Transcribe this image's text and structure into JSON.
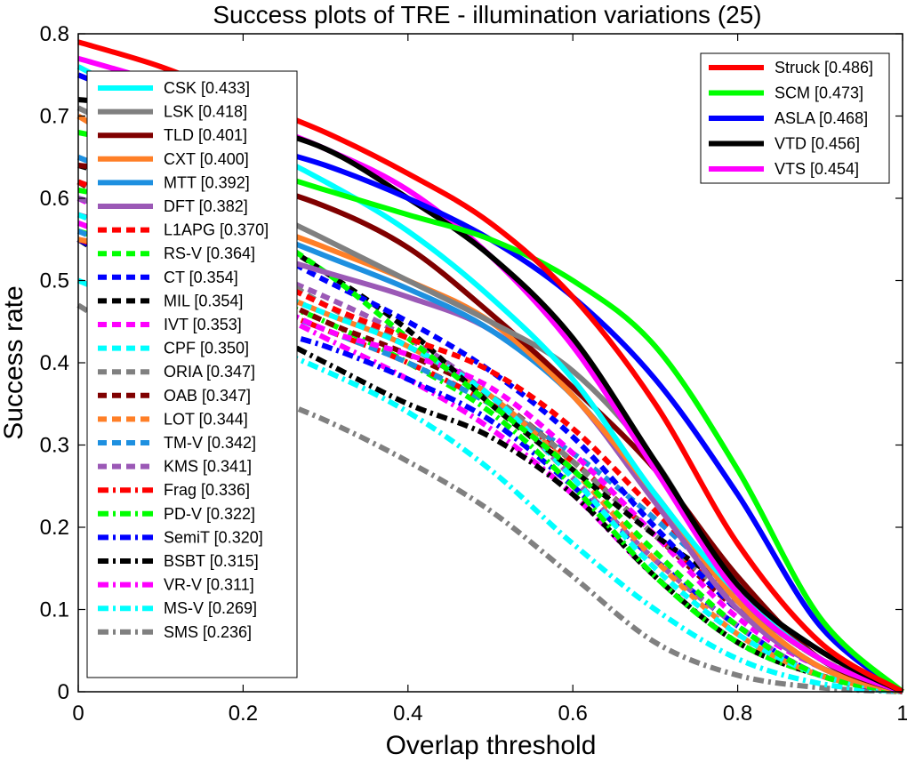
{
  "chart_data": {
    "type": "line",
    "title": "Success plots of TRE - illumination variations (25)",
    "xlabel": "Overlap threshold",
    "ylabel": "Success rate",
    "xlim": [
      0,
      1
    ],
    "ylim": [
      0,
      0.8
    ],
    "xticks": [
      "0",
      "0.2",
      "0.4",
      "0.6",
      "0.8",
      "1"
    ],
    "yticks": [
      "0",
      "0.1",
      "0.2",
      "0.3",
      "0.4",
      "0.5",
      "0.6",
      "0.7",
      "0.8"
    ],
    "grid": false,
    "x": [
      0,
      0.1,
      0.2,
      0.3,
      0.4,
      0.5,
      0.6,
      0.7,
      0.8,
      0.9,
      1.0
    ],
    "legends": {
      "right": [
        "Struck [0.486]",
        "SCM [0.473]",
        "ASLA [0.468]",
        "VTD [0.456]",
        "VTS [0.454]"
      ],
      "left": [
        "CSK [0.433]",
        "LSK [0.418]",
        "TLD [0.401]",
        "CXT [0.400]",
        "MTT [0.392]",
        "DFT [0.382]",
        "L1APG [0.370]",
        "RS-V [0.364]",
        "CT [0.354]",
        "MIL [0.354]",
        "IVT [0.353]",
        "CPF [0.350]",
        "ORIA [0.347]",
        "OAB [0.347]",
        "LOT [0.344]",
        "TM-V [0.342]",
        "KMS [0.341]",
        "Frag [0.336]",
        "PD-V [0.322]",
        "SemiT [0.320]",
        "BSBT [0.315]",
        "VR-V [0.311]",
        "MS-V [0.269]",
        "SMS [0.236]"
      ]
    },
    "series": [
      {
        "name": "Struck [0.486]",
        "color": "#ff0000",
        "style": "solid",
        "values": [
          0.79,
          0.76,
          0.72,
          0.68,
          0.63,
          0.57,
          0.48,
          0.35,
          0.18,
          0.06,
          0.0
        ]
      },
      {
        "name": "SCM [0.473]",
        "color": "#00ff00",
        "style": "solid",
        "values": [
          0.68,
          0.66,
          0.64,
          0.61,
          0.58,
          0.55,
          0.5,
          0.42,
          0.27,
          0.09,
          0.0
        ]
      },
      {
        "name": "ASLA [0.468]",
        "color": "#0000ff",
        "style": "solid",
        "values": [
          0.75,
          0.71,
          0.67,
          0.64,
          0.6,
          0.55,
          0.48,
          0.38,
          0.24,
          0.08,
          0.0
        ]
      },
      {
        "name": "VTD [0.456]",
        "color": "#000000",
        "style": "solid",
        "values": [
          0.72,
          0.71,
          0.69,
          0.66,
          0.6,
          0.53,
          0.43,
          0.28,
          0.13,
          0.05,
          0.0
        ]
      },
      {
        "name": "VTS [0.454]",
        "color": "#ff00ff",
        "style": "solid",
        "values": [
          0.77,
          0.74,
          0.7,
          0.66,
          0.61,
          0.53,
          0.42,
          0.27,
          0.12,
          0.04,
          0.0
        ]
      },
      {
        "name": "CSK [0.433]",
        "color": "#00ffff",
        "style": "solid",
        "values": [
          0.76,
          0.71,
          0.67,
          0.62,
          0.56,
          0.48,
          0.38,
          0.24,
          0.12,
          0.04,
          0.0
        ]
      },
      {
        "name": "LSK [0.418]",
        "color": "#808080",
        "style": "solid",
        "values": [
          0.71,
          0.66,
          0.6,
          0.55,
          0.5,
          0.45,
          0.39,
          0.28,
          0.12,
          0.04,
          0.0
        ]
      },
      {
        "name": "TLD [0.401]",
        "color": "#800000",
        "style": "solid",
        "values": [
          0.64,
          0.63,
          0.62,
          0.59,
          0.54,
          0.46,
          0.37,
          0.27,
          0.14,
          0.04,
          0.0
        ]
      },
      {
        "name": "CXT [0.400]",
        "color": "#ff7f27",
        "style": "solid",
        "values": [
          0.7,
          0.64,
          0.58,
          0.54,
          0.5,
          0.45,
          0.36,
          0.24,
          0.11,
          0.03,
          0.0
        ]
      },
      {
        "name": "MTT [0.392]",
        "color": "#1e90e0",
        "style": "solid",
        "values": [
          0.65,
          0.61,
          0.57,
          0.53,
          0.49,
          0.44,
          0.36,
          0.24,
          0.11,
          0.03,
          0.0
        ]
      },
      {
        "name": "DFT [0.382]",
        "color": "#9b59b6",
        "style": "solid",
        "values": [
          0.6,
          0.57,
          0.54,
          0.51,
          0.48,
          0.44,
          0.36,
          0.23,
          0.1,
          0.03,
          0.0
        ]
      },
      {
        "name": "L1APG [0.370]",
        "color": "#ff0000",
        "style": "dash",
        "values": [
          0.62,
          0.58,
          0.52,
          0.47,
          0.43,
          0.39,
          0.32,
          0.22,
          0.12,
          0.04,
          0.0
        ]
      },
      {
        "name": "RS-V [0.364]",
        "color": "#00ff00",
        "style": "dash",
        "values": [
          0.61,
          0.59,
          0.57,
          0.51,
          0.43,
          0.35,
          0.27,
          0.17,
          0.08,
          0.02,
          0.0
        ]
      },
      {
        "name": "CT [0.354]",
        "color": "#0000ff",
        "style": "dash",
        "values": [
          0.6,
          0.57,
          0.55,
          0.5,
          0.45,
          0.39,
          0.31,
          0.2,
          0.1,
          0.03,
          0.0
        ]
      },
      {
        "name": "MIL [0.354]",
        "color": "#000000",
        "style": "dash",
        "values": [
          0.64,
          0.61,
          0.57,
          0.51,
          0.44,
          0.35,
          0.27,
          0.19,
          0.12,
          0.04,
          0.0
        ]
      },
      {
        "name": "IVT [0.353]",
        "color": "#ff00ff",
        "style": "dash",
        "values": [
          0.6,
          0.55,
          0.49,
          0.44,
          0.41,
          0.37,
          0.29,
          0.19,
          0.09,
          0.03,
          0.0
        ]
      },
      {
        "name": "CPF [0.350]",
        "color": "#00ffff",
        "style": "dash",
        "values": [
          0.58,
          0.54,
          0.5,
          0.46,
          0.42,
          0.36,
          0.26,
          0.15,
          0.07,
          0.02,
          0.0
        ]
      },
      {
        "name": "ORIA [0.347]",
        "color": "#808080",
        "style": "dash",
        "values": [
          0.62,
          0.58,
          0.53,
          0.47,
          0.42,
          0.36,
          0.28,
          0.19,
          0.11,
          0.04,
          0.0
        ]
      },
      {
        "name": "OAB [0.347]",
        "color": "#800000",
        "style": "dash",
        "values": [
          0.62,
          0.56,
          0.5,
          0.45,
          0.41,
          0.36,
          0.28,
          0.19,
          0.1,
          0.03,
          0.0
        ]
      },
      {
        "name": "LOT [0.344]",
        "color": "#ff7f27",
        "style": "dash",
        "values": [
          0.55,
          0.53,
          0.5,
          0.46,
          0.42,
          0.36,
          0.27,
          0.16,
          0.07,
          0.02,
          0.0
        ]
      },
      {
        "name": "TM-V [0.342]",
        "color": "#1e90e0",
        "style": "dash",
        "values": [
          0.56,
          0.52,
          0.48,
          0.44,
          0.4,
          0.35,
          0.29,
          0.21,
          0.12,
          0.04,
          0.0
        ]
      },
      {
        "name": "KMS [0.341]",
        "color": "#9b59b6",
        "style": "dash",
        "values": [
          0.58,
          0.55,
          0.52,
          0.48,
          0.43,
          0.36,
          0.26,
          0.16,
          0.08,
          0.02,
          0.0
        ]
      },
      {
        "name": "Frag [0.336]",
        "color": "#ff0000",
        "style": "dashdot",
        "values": [
          0.55,
          0.52,
          0.48,
          0.44,
          0.4,
          0.35,
          0.28,
          0.19,
          0.11,
          0.04,
          0.0
        ]
      },
      {
        "name": "PD-V [0.322]",
        "color": "#00ff00",
        "style": "dashdot",
        "values": [
          0.56,
          0.53,
          0.49,
          0.45,
          0.4,
          0.34,
          0.25,
          0.14,
          0.06,
          0.02,
          0.0
        ]
      },
      {
        "name": "SemiT [0.320]",
        "color": "#0000ff",
        "style": "dashdot",
        "values": [
          0.55,
          0.5,
          0.45,
          0.42,
          0.38,
          0.33,
          0.25,
          0.16,
          0.08,
          0.02,
          0.0
        ]
      },
      {
        "name": "BSBT [0.315]",
        "color": "#000000",
        "style": "dashdot",
        "values": [
          0.55,
          0.49,
          0.45,
          0.4,
          0.35,
          0.31,
          0.24,
          0.14,
          0.06,
          0.02,
          0.0
        ]
      },
      {
        "name": "VR-V [0.311]",
        "color": "#ff00ff",
        "style": "dashdot",
        "values": [
          0.57,
          0.53,
          0.48,
          0.43,
          0.38,
          0.32,
          0.24,
          0.14,
          0.06,
          0.02,
          0.0
        ]
      },
      {
        "name": "MS-V [0.269]",
        "color": "#00ffff",
        "style": "dashdot",
        "values": [
          0.5,
          0.46,
          0.43,
          0.39,
          0.34,
          0.27,
          0.18,
          0.1,
          0.04,
          0.01,
          0.0
        ]
      },
      {
        "name": "SMS [0.236]",
        "color": "#808080",
        "style": "dashdot",
        "values": [
          0.47,
          0.41,
          0.37,
          0.33,
          0.28,
          0.22,
          0.14,
          0.06,
          0.02,
          0.005,
          0.0
        ]
      }
    ]
  }
}
